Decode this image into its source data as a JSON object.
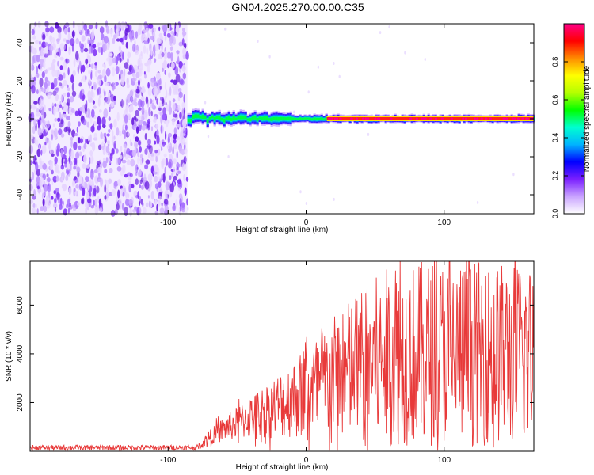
{
  "title": "GN04.2025.270.00.00.C35",
  "chart_data": [
    {
      "type": "heatmap",
      "xlabel": "Height of straight line (km)",
      "ylabel": "Frequency (Hz)",
      "xlim": [
        -200,
        165
      ],
      "ylim": [
        -50,
        50
      ],
      "xticks": [
        -100,
        0,
        100
      ],
      "yticks": [
        -40,
        -20,
        0,
        20,
        40
      ],
      "colorbar": {
        "label": "Normalized spectral amplitude",
        "range": [
          0.0,
          1.0
        ],
        "ticks": [
          0.0,
          0.2,
          0.4,
          0.6,
          0.8
        ],
        "tick_labels": [
          "0.0",
          "0.2",
          "0.4",
          "0.6",
          "0.8"
        ],
        "colors": [
          "#ffffff",
          "#c9a3ff",
          "#7a1fff",
          "#0000ff",
          "#00b4ff",
          "#00ffd0",
          "#00ff00",
          "#b4ff00",
          "#ffff00",
          "#ff8c00",
          "#ff0000",
          "#ff0088"
        ]
      },
      "noise_region_x": [
        -200,
        -86
      ],
      "tone_start_x": -86,
      "tone_frequency_hz": 0
    },
    {
      "type": "line",
      "xlabel": "Height of straight line (km)",
      "ylabel": "SNR (10 * v/v)",
      "xlim": [
        -200,
        165
      ],
      "ylim": [
        0,
        7800
      ],
      "xticks": [
        -100,
        0,
        100
      ],
      "yticks": [
        2000,
        4000,
        6000
      ],
      "line_color": "#e83a3a",
      "series": [
        {
          "x": [
            -200,
            -150,
            -100,
            -78,
            -72,
            -60,
            -40,
            -20,
            0,
            20,
            40,
            60,
            80,
            100,
            130,
            165
          ],
          "y": [
            150,
            150,
            150,
            160,
            500,
            900,
            1400,
            1900,
            2400,
            3000,
            3500,
            3900,
            4000,
            4100,
            4000,
            4000
          ]
        }
      ]
    }
  ]
}
